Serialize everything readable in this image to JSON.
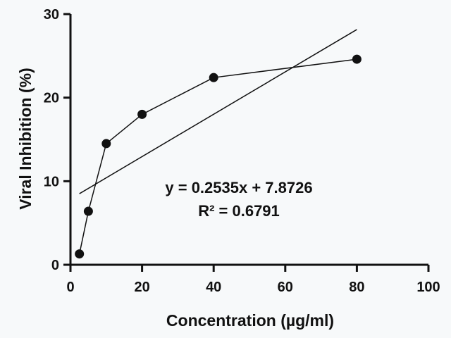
{
  "chart_data": {
    "type": "scatter",
    "title": "",
    "xlabel": "Concentration (µg/ml)",
    "ylabel": "Viral Inhibition (%)",
    "xlim": [
      0,
      100
    ],
    "ylim": [
      0,
      30
    ],
    "xticks": [
      0,
      20,
      40,
      60,
      80,
      100
    ],
    "yticks": [
      0,
      10,
      20,
      30
    ],
    "grid": false,
    "legend": "none",
    "series": [
      {
        "x": [
          2.5,
          5,
          10,
          20,
          40,
          80
        ],
        "y": [
          1.3,
          6.4,
          14.5,
          18.0,
          22.4,
          24.6
        ]
      }
    ],
    "trendline": {
      "type": "linear",
      "slope": 0.2535,
      "intercept": 7.8726,
      "x_range": [
        2.5,
        80
      ]
    },
    "annotations": [
      "y = 0.2535x + 7.8726",
      "R² = 0.6791"
    ],
    "colors": {
      "background": "#f7f9fa",
      "axis": "#111111",
      "marker": "#111111"
    }
  }
}
